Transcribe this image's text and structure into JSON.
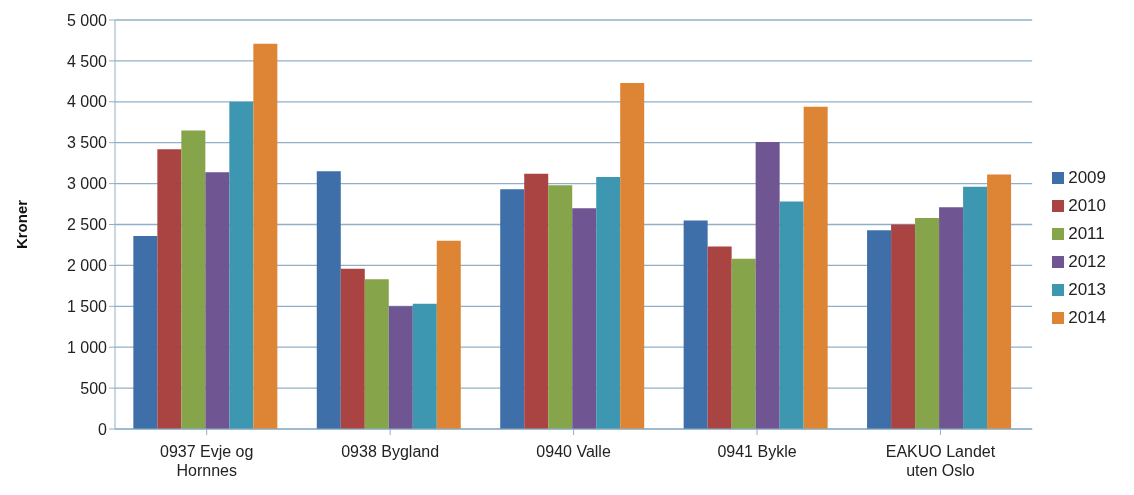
{
  "chart_data": {
    "type": "bar",
    "ylabel": "Kroner",
    "categories": [
      "0937 Evje og Hornnes",
      "0938 Bygland",
      "0940 Valle",
      "0941 Bykle",
      "EAKUO Landet uten Oslo"
    ],
    "series": [
      {
        "name": "2009",
        "color": "#3e6fa8",
        "values": [
          2360,
          3150,
          2930,
          2550,
          2430
        ]
      },
      {
        "name": "2010",
        "color": "#a94442",
        "values": [
          3420,
          1960,
          3120,
          2230,
          2500
        ]
      },
      {
        "name": "2011",
        "color": "#86a44a",
        "values": [
          3650,
          1830,
          2980,
          2080,
          2580
        ]
      },
      {
        "name": "2012",
        "color": "#6f5592",
        "values": [
          3140,
          1500,
          2700,
          3510,
          2710
        ]
      },
      {
        "name": "2013",
        "color": "#3d97b0",
        "values": [
          4000,
          1530,
          3080,
          2780,
          2960
        ]
      },
      {
        "name": "2014",
        "color": "#dd8535",
        "values": [
          4710,
          2300,
          4230,
          3940,
          3110
        ]
      }
    ],
    "ylim": [
      0,
      5000
    ],
    "yticks": [
      0,
      500,
      {
        "value": 1000,
        "label": "1 000"
      },
      {
        "value": 1500,
        "label": "1 500"
      },
      {
        "value": 2000,
        "label": "2 000"
      },
      {
        "value": 2500,
        "label": "2 500"
      },
      {
        "value": 3000,
        "label": "3 000"
      },
      {
        "value": 3500,
        "label": "3 500"
      },
      {
        "value": 4000,
        "label": "4 000"
      },
      {
        "value": 4500,
        "label": "4 500"
      },
      {
        "value": 5000,
        "label": "5 000"
      }
    ],
    "grid": "y",
    "legend": "right"
  }
}
